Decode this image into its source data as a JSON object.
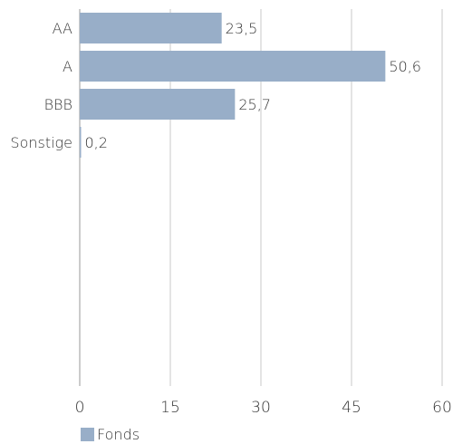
{
  "chart_data": {
    "type": "bar",
    "orientation": "horizontal",
    "categories": [
      "AA",
      "A",
      "BBB",
      "Sonstige"
    ],
    "series": [
      {
        "name": "Fonds",
        "values": [
          23.5,
          50.6,
          25.7,
          0.2
        ],
        "color": "#98aec8"
      }
    ],
    "data_labels": [
      "23,5",
      "50,6",
      "25,7",
      "0,2"
    ],
    "xlim": [
      0,
      60
    ],
    "xticks": [
      0,
      15,
      30,
      45,
      60
    ],
    "tick_labels": [
      "0",
      "15",
      "30",
      "45",
      "60"
    ],
    "grid": "vertical",
    "legend_position": "bottom-left"
  }
}
